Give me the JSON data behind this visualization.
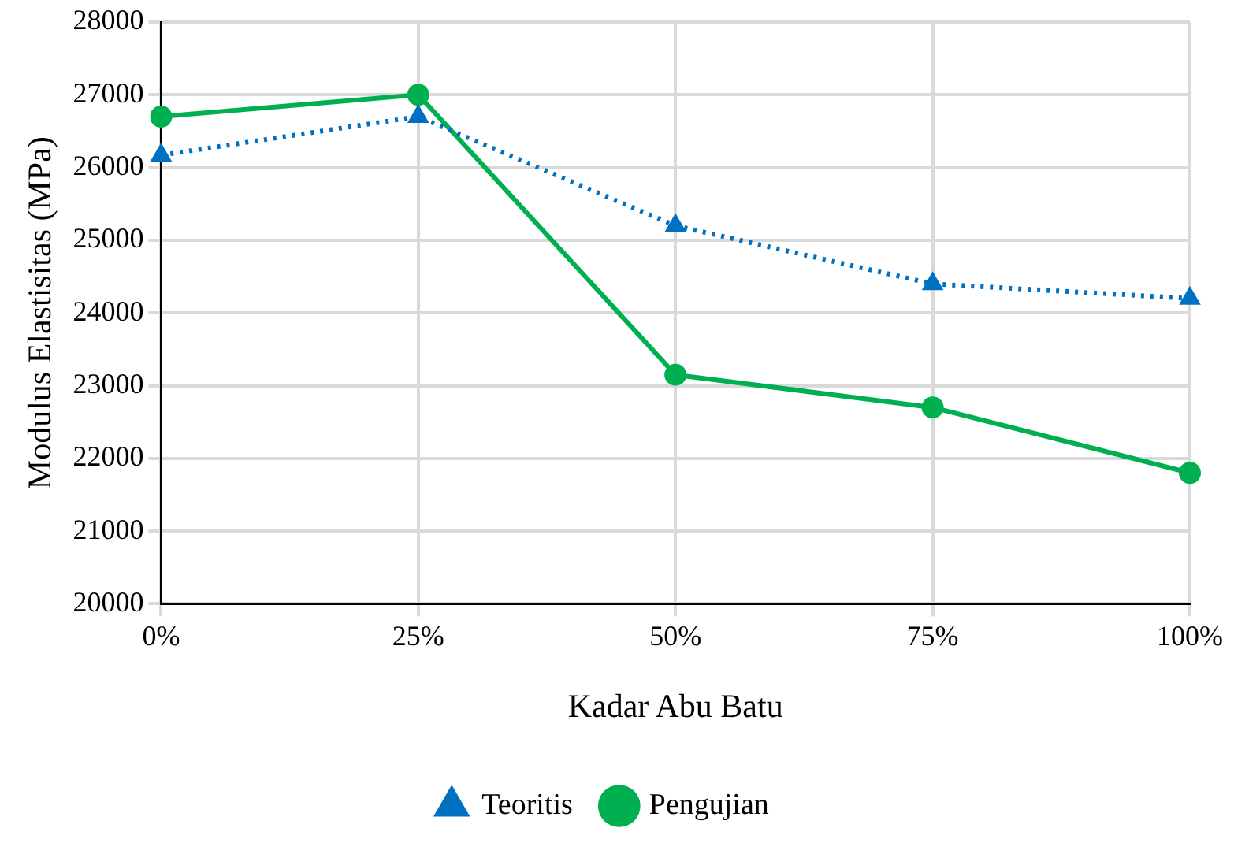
{
  "chart_data": {
    "type": "line",
    "xlabel": "Kadar Abu Batu",
    "ylabel": "Modulus Elastisitas (MPa)",
    "categories": [
      "0%",
      "25%",
      "50%",
      "75%",
      "100%"
    ],
    "series": [
      {
        "name": "Teoritis",
        "color": "#0070c0",
        "values": [
          26170,
          26700,
          25200,
          24400,
          24200
        ],
        "marker": "triangle",
        "line_style": "dotted"
      },
      {
        "name": "Pengujian",
        "color": "#00b050",
        "values": [
          26700,
          27000,
          23150,
          22700,
          21800
        ],
        "marker": "circle",
        "line_style": "solid"
      }
    ],
    "ylim": [
      20000,
      28000
    ],
    "yticks": [
      20000,
      21000,
      22000,
      23000,
      24000,
      25000,
      26000,
      27000,
      28000
    ],
    "grid": true,
    "legend": "bottom"
  }
}
